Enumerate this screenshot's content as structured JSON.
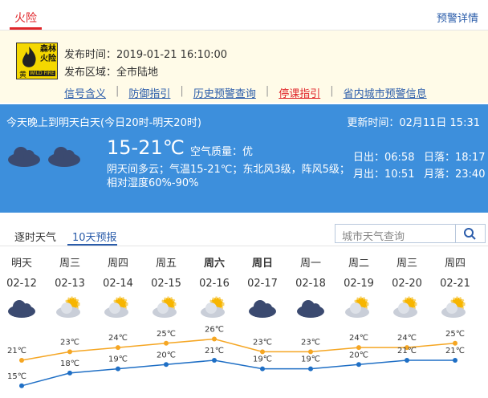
{
  "tabs": {
    "active": "火险",
    "right_link": "预警详情"
  },
  "warning": {
    "icon": {
      "line1": "森林",
      "line2": "火险",
      "level": "黄",
      "english": "WILD FIRE"
    },
    "time": "发布时间：2019-01-21 16:10:00",
    "area": "发布区域：全市陆地",
    "links": [
      "信号含义",
      "防御指引",
      "历史预警查询",
      "停课指引",
      "省内城市预警信息"
    ]
  },
  "today": {
    "period": "今天晚上到明天白天(今日20时-明天20时)",
    "updated": "更新时间：02月11日 15:31",
    "temp": "15-21℃",
    "air": "空气质量：优",
    "desc": "阴天间多云；气温15-21℃；东北风3级，阵风5级；",
    "humidity": "相对湿度60%-90%",
    "sunrise": "日出：06:58",
    "sunset": "日落：18:17",
    "moonrise": "月出：10:51",
    "moonset": "月落：23:40"
  },
  "forecast_tabs": [
    "逐时天气",
    "10天预报"
  ],
  "search_placeholder": "城市天气查询",
  "forecast": {
    "days": [
      "明天",
      "周三",
      "周四",
      "周五",
      "周六",
      "周日",
      "周一",
      "周二",
      "周三",
      "周四"
    ],
    "dates": [
      "02-12",
      "02-13",
      "02-14",
      "02-15",
      "02-16",
      "02-17",
      "02-18",
      "02-19",
      "02-20",
      "02-21"
    ],
    "high": [
      21,
      23,
      24,
      25,
      26,
      23,
      23,
      24,
      24,
      25
    ],
    "high_labels": [
      "21℃",
      "23℃",
      "24℃",
      "25℃",
      "26℃",
      "23℃",
      "23℃",
      "24℃",
      "24℃",
      "25℃"
    ],
    "low": [
      15,
      18,
      19,
      20,
      21,
      19,
      19,
      20,
      21,
      21
    ],
    "low_labels": [
      "15℃",
      "18℃",
      "19℃",
      "20℃",
      "21℃",
      "19℃",
      "19℃",
      "20℃",
      "21℃",
      "21℃"
    ]
  }
}
